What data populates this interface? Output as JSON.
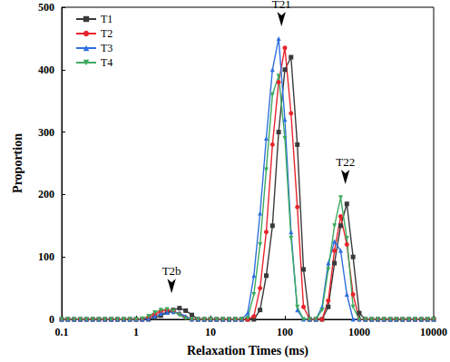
{
  "chart_data": {
    "type": "line",
    "x_label": "Relaxation Times (ms)",
    "y_label": "Proportion",
    "log": "x",
    "grid": false,
    "legend": "upper left",
    "xlim": [
      0.1,
      10000
    ],
    "xticks": [
      0.1,
      1,
      10,
      100,
      1000,
      10000
    ],
    "ylim": [
      0,
      500
    ],
    "yticks": [
      0,
      100,
      200,
      300,
      400,
      500
    ],
    "x": [
      0.1,
      0.121,
      0.147,
      0.178,
      0.215,
      0.261,
      0.316,
      0.383,
      0.464,
      0.562,
      0.681,
      0.825,
      1,
      1.21,
      1.47,
      1.78,
      2.15,
      2.61,
      3.16,
      3.83,
      4.64,
      5.62,
      6.81,
      8.25,
      10,
      12.1,
      14.7,
      17.8,
      21.5,
      26.1,
      31.6,
      38.3,
      46.4,
      56.2,
      68.1,
      82.5,
      100,
      121,
      147,
      178,
      215,
      261,
      316,
      383,
      464,
      562,
      681,
      825,
      1000,
      1210,
      1470,
      1780,
      2150,
      2610,
      3160,
      3830,
      4640,
      5620,
      6810,
      8250,
      10000
    ],
    "series": [
      {
        "name": "T1",
        "color": "#3a3a3a",
        "marker": "square",
        "values": [
          0,
          0,
          0,
          0,
          0,
          0,
          0,
          0,
          0,
          0,
          0,
          0,
          0,
          0,
          0,
          2,
          6,
          11,
          15,
          18,
          14,
          7,
          0,
          0,
          0,
          0,
          0,
          0,
          0,
          0,
          0,
          0,
          15,
          70,
          150,
          300,
          400,
          420,
          280,
          80,
          0,
          0,
          0,
          20,
          90,
          150,
          185,
          100,
          10,
          0,
          0,
          0,
          0,
          0,
          0,
          0,
          0,
          0,
          0,
          0,
          0
        ]
      },
      {
        "name": "T2",
        "color": "#e8242c",
        "marker": "circle",
        "values": [
          0,
          0,
          0,
          0,
          0,
          0,
          0,
          0,
          0,
          0,
          0,
          0,
          0,
          0,
          3,
          8,
          13,
          15,
          13,
          9,
          3,
          0,
          0,
          0,
          0,
          0,
          0,
          0,
          0,
          0,
          0,
          5,
          50,
          140,
          280,
          380,
          435,
          330,
          180,
          20,
          0,
          0,
          0,
          30,
          110,
          165,
          120,
          40,
          0,
          0,
          0,
          0,
          0,
          0,
          0,
          0,
          0,
          0,
          0,
          0,
          0
        ]
      },
      {
        "name": "T3",
        "color": "#2f6fe0",
        "marker": "triangle-up",
        "values": [
          0,
          0,
          0,
          0,
          0,
          0,
          0,
          0,
          0,
          0,
          0,
          0,
          0,
          0,
          1,
          5,
          9,
          11,
          12,
          10,
          5,
          0,
          0,
          0,
          0,
          0,
          0,
          0,
          0,
          0,
          10,
          70,
          170,
          290,
          400,
          450,
          320,
          140,
          15,
          0,
          0,
          0,
          20,
          90,
          125,
          110,
          40,
          0,
          0,
          0,
          0,
          0,
          0,
          0,
          0,
          0,
          0,
          0,
          0,
          0,
          0
        ]
      },
      {
        "name": "T4",
        "color": "#3daa5e",
        "marker": "triangle-down",
        "values": [
          0,
          0,
          0,
          0,
          0,
          0,
          0,
          0,
          0,
          0,
          0,
          0,
          0,
          1,
          5,
          11,
          15,
          16,
          13,
          7,
          1,
          0,
          0,
          0,
          0,
          0,
          0,
          0,
          0,
          0,
          2,
          40,
          120,
          240,
          360,
          390,
          290,
          130,
          20,
          0,
          0,
          0,
          15,
          80,
          150,
          195,
          130,
          20,
          0,
          0,
          0,
          0,
          0,
          0,
          0,
          0,
          0,
          0,
          0,
          0,
          0
        ]
      }
    ],
    "annotations": [
      {
        "text": "T2b",
        "x": 3,
        "y": 30
      },
      {
        "text": "T21",
        "x": 90,
        "y": 458
      },
      {
        "text": "T22",
        "x": 650,
        "y": 205
      }
    ]
  }
}
